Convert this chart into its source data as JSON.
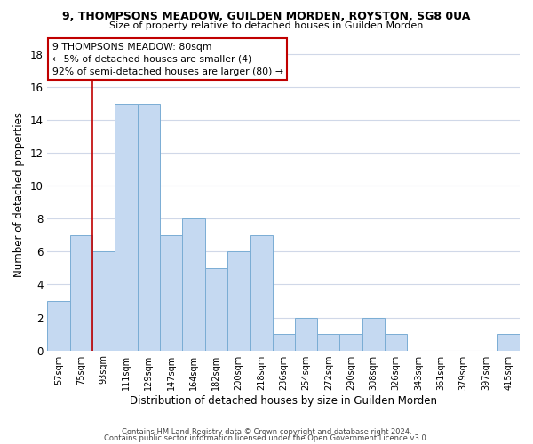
{
  "title": "9, THOMPSONS MEADOW, GUILDEN MORDEN, ROYSTON, SG8 0UA",
  "subtitle": "Size of property relative to detached houses in Guilden Morden",
  "xlabel": "Distribution of detached houses by size in Guilden Morden",
  "ylabel": "Number of detached properties",
  "bin_labels": [
    "57sqm",
    "75sqm",
    "93sqm",
    "111sqm",
    "129sqm",
    "147sqm",
    "164sqm",
    "182sqm",
    "200sqm",
    "218sqm",
    "236sqm",
    "254sqm",
    "272sqm",
    "290sqm",
    "308sqm",
    "326sqm",
    "343sqm",
    "361sqm",
    "379sqm",
    "397sqm",
    "415sqm"
  ],
  "bar_heights": [
    3,
    7,
    6,
    15,
    15,
    7,
    8,
    5,
    6,
    7,
    1,
    2,
    1,
    1,
    2,
    1,
    0,
    0,
    0,
    0,
    1
  ],
  "bar_color": "#c5d9f1",
  "bar_edge_color": "#7aadd4",
  "vline_pos": 1.5,
  "vline_color": "#c00000",
  "annotation_line1": "9 THOMPSONS MEADOW: 80sqm",
  "annotation_line2": "← 5% of detached houses are smaller (4)",
  "annotation_line3": "92% of semi-detached houses are larger (80) →",
  "annotation_box_color": "#ffffff",
  "annotation_box_edge": "#c00000",
  "ylim": [
    0,
    19
  ],
  "yticks": [
    0,
    2,
    4,
    6,
    8,
    10,
    12,
    14,
    16,
    18
  ],
  "footer1": "Contains HM Land Registry data © Crown copyright and database right 2024.",
  "footer2": "Contains public sector information licensed under the Open Government Licence v3.0.",
  "background_color": "#ffffff",
  "grid_color": "#d0d8e8"
}
